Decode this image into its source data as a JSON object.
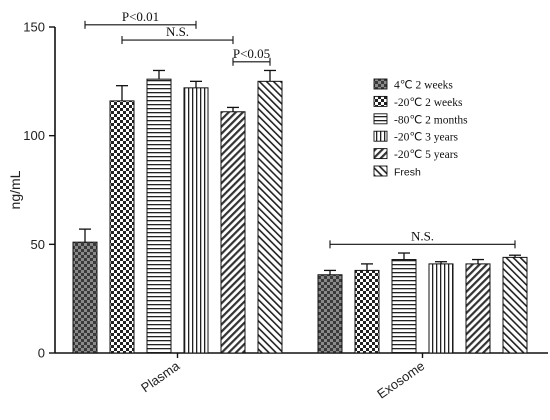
{
  "chart_data": {
    "type": "bar",
    "title": "",
    "xlabel": "",
    "ylabel": "ng/mL",
    "ylim": [
      0,
      150
    ],
    "yticks": [
      "0",
      "50",
      "100",
      "150"
    ],
    "groups": [
      "Plasma",
      "Exosome"
    ],
    "series": [
      {
        "name": "4℃ 2 weeks",
        "pattern": "checker-dark",
        "values": [
          51,
          36
        ],
        "errors": [
          6,
          2
        ]
      },
      {
        "name": "-20℃ 2 weeks",
        "pattern": "checker",
        "values": [
          116,
          38
        ],
        "errors": [
          7,
          3
        ]
      },
      {
        "name": "-80℃ 2 months",
        "pattern": "hlines",
        "values": [
          126,
          43
        ],
        "errors": [
          4,
          3
        ]
      },
      {
        "name": "-20℃ 3 years",
        "pattern": "vlines",
        "values": [
          122,
          41
        ],
        "errors": [
          3,
          1
        ]
      },
      {
        "name": "-20℃ 5 years",
        "pattern": "diag-up",
        "values": [
          111,
          41
        ],
        "errors": [
          2,
          2
        ]
      },
      {
        "name": "Fresh",
        "pattern": "diag-down",
        "values": [
          125,
          44
        ],
        "errors": [
          5,
          1
        ]
      }
    ],
    "legend_position": "right",
    "annotations": [
      {
        "text": "P<0.01",
        "group": 0,
        "from": 0,
        "to": 3,
        "y": 151
      },
      {
        "text": "N.S.",
        "group": 0,
        "from": 1,
        "to": 4,
        "y": 144
      },
      {
        "text": "P<0.05",
        "group": 0,
        "from": 4,
        "to": 5,
        "y": 134
      },
      {
        "text": "N.S.",
        "group": 1,
        "from": 0,
        "to": 5,
        "y": 50
      }
    ]
  },
  "colors": {
    "axis": "#111111",
    "ink": "#1a1a1a",
    "background": "#ffffff"
  }
}
